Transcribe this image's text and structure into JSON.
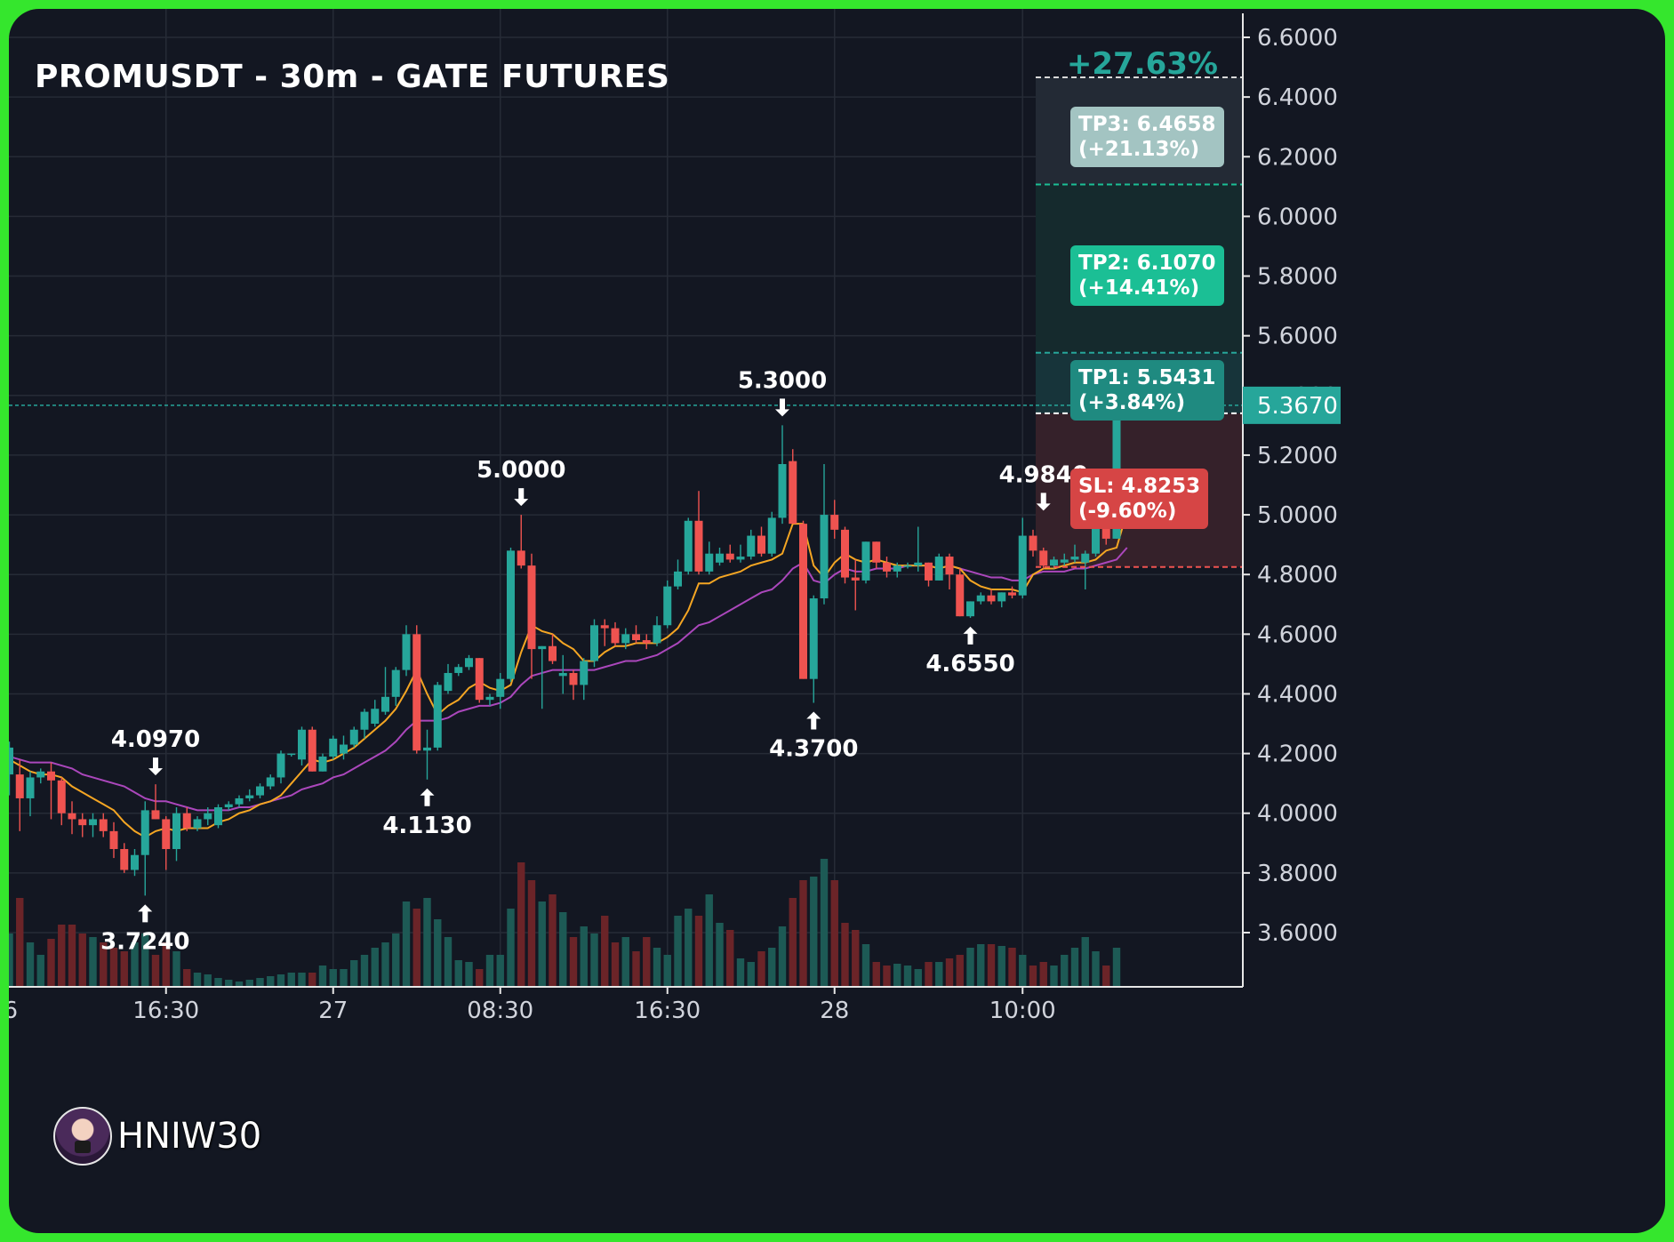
{
  "title": "PROMUSDT - 30m - GATE FUTURES",
  "watermark": "HNIW30",
  "colors": {
    "up": "#26a69a",
    "down": "#ef5350",
    "ema_fast": "#f5a623",
    "ema_slow": "#ab47bc",
    "last_price": "#26a69a",
    "profit": "#26a69a",
    "tp3": "#a3c4c2",
    "tp2": "#1bbf95",
    "tp1": "#1f8a80",
    "sl": "#d64545"
  },
  "chart_data": {
    "type": "candlestick",
    "title": "PROMUSDT - 30m - GATE FUTURES",
    "y_axis": {
      "ylim": [
        3.42,
        6.66
      ],
      "ticks": [
        "6.6000",
        "6.4000",
        "6.2000",
        "6.0000",
        "5.8000",
        "5.6000",
        "5.4000",
        "5.2000",
        "5.0000",
        "4.8000",
        "4.6000",
        "4.4000",
        "4.2000",
        "4.0000",
        "3.8000",
        "3.6000"
      ]
    },
    "x_axis": {
      "ticks": [
        {
          "label": "26",
          "index": -0.6
        },
        {
          "label": "16:30",
          "index": 15
        },
        {
          "label": "27",
          "index": 31
        },
        {
          "label": "08:30",
          "index": 47
        },
        {
          "label": "16:30",
          "index": 63
        },
        {
          "label": "28",
          "index": 79
        },
        {
          "label": "10:00",
          "index": 97
        }
      ]
    },
    "candles": [
      {
        "o": 4.13,
        "h": 4.24,
        "l": 4.06,
        "c": 4.22
      },
      {
        "o": 4.13,
        "h": 4.18,
        "l": 3.94,
        "c": 4.05
      },
      {
        "o": 4.05,
        "h": 4.14,
        "l": 3.99,
        "c": 4.12
      },
      {
        "o": 4.12,
        "h": 4.15,
        "l": 4.1,
        "c": 4.14
      },
      {
        "o": 4.14,
        "h": 4.17,
        "l": 3.98,
        "c": 4.11
      },
      {
        "o": 4.11,
        "h": 4.12,
        "l": 3.96,
        "c": 4.0
      },
      {
        "o": 4.0,
        "h": 4.04,
        "l": 3.93,
        "c": 3.98
      },
      {
        "o": 3.98,
        "h": 4.0,
        "l": 3.92,
        "c": 3.96
      },
      {
        "o": 3.96,
        "h": 4.0,
        "l": 3.92,
        "c": 3.98
      },
      {
        "o": 3.98,
        "h": 4.0,
        "l": 3.92,
        "c": 3.94
      },
      {
        "o": 3.94,
        "h": 3.97,
        "l": 3.85,
        "c": 3.88
      },
      {
        "o": 3.88,
        "h": 3.9,
        "l": 3.8,
        "c": 3.81
      },
      {
        "o": 3.81,
        "h": 3.88,
        "l": 3.79,
        "c": 3.86
      },
      {
        "o": 3.86,
        "h": 4.04,
        "l": 3.724,
        "c": 4.01
      },
      {
        "o": 4.01,
        "h": 4.097,
        "l": 3.98,
        "c": 3.98
      },
      {
        "o": 3.98,
        "h": 3.99,
        "l": 3.81,
        "c": 3.88
      },
      {
        "o": 3.88,
        "h": 4.02,
        "l": 3.84,
        "c": 4.0
      },
      {
        "o": 4.0,
        "h": 4.02,
        "l": 3.94,
        "c": 3.95
      },
      {
        "o": 3.95,
        "h": 3.99,
        "l": 3.94,
        "c": 3.98
      },
      {
        "o": 3.98,
        "h": 4.02,
        "l": 3.96,
        "c": 4.0
      },
      {
        "o": 3.96,
        "h": 4.03,
        "l": 3.95,
        "c": 4.02
      },
      {
        "o": 4.02,
        "h": 4.04,
        "l": 4.01,
        "c": 4.03
      },
      {
        "o": 4.03,
        "h": 4.06,
        "l": 4.02,
        "c": 4.05
      },
      {
        "o": 4.05,
        "h": 4.08,
        "l": 4.04,
        "c": 4.06
      },
      {
        "o": 4.06,
        "h": 4.1,
        "l": 4.05,
        "c": 4.09
      },
      {
        "o": 4.09,
        "h": 4.13,
        "l": 4.08,
        "c": 4.12
      },
      {
        "o": 4.12,
        "h": 4.21,
        "l": 4.1,
        "c": 4.2
      },
      {
        "o": 4.2,
        "h": 4.2,
        "l": 4.19,
        "c": 4.2
      },
      {
        "o": 4.18,
        "h": 4.29,
        "l": 4.16,
        "c": 4.28
      },
      {
        "o": 4.28,
        "h": 4.29,
        "l": 4.14,
        "c": 4.14
      },
      {
        "o": 4.14,
        "h": 4.2,
        "l": 4.14,
        "c": 4.19
      },
      {
        "o": 4.19,
        "h": 4.26,
        "l": 4.18,
        "c": 4.25
      },
      {
        "o": 4.2,
        "h": 4.26,
        "l": 4.18,
        "c": 4.23
      },
      {
        "o": 4.23,
        "h": 4.29,
        "l": 4.22,
        "c": 4.28
      },
      {
        "o": 4.28,
        "h": 4.35,
        "l": 4.25,
        "c": 4.34
      },
      {
        "o": 4.3,
        "h": 4.38,
        "l": 4.29,
        "c": 4.35
      },
      {
        "o": 4.34,
        "h": 4.49,
        "l": 4.33,
        "c": 4.39
      },
      {
        "o": 4.39,
        "h": 4.49,
        "l": 4.36,
        "c": 4.48
      },
      {
        "o": 4.48,
        "h": 4.63,
        "l": 4.46,
        "c": 4.6
      },
      {
        "o": 4.6,
        "h": 4.63,
        "l": 4.2,
        "c": 4.21
      },
      {
        "o": 4.21,
        "h": 4.28,
        "l": 4.113,
        "c": 4.22
      },
      {
        "o": 4.22,
        "h": 4.44,
        "l": 4.21,
        "c": 4.43
      },
      {
        "o": 4.41,
        "h": 4.5,
        "l": 4.4,
        "c": 4.47
      },
      {
        "o": 4.47,
        "h": 4.5,
        "l": 4.46,
        "c": 4.49
      },
      {
        "o": 4.49,
        "h": 4.53,
        "l": 4.48,
        "c": 4.52
      },
      {
        "o": 4.52,
        "h": 4.52,
        "l": 4.37,
        "c": 4.38
      },
      {
        "o": 4.38,
        "h": 4.4,
        "l": 4.36,
        "c": 4.39
      },
      {
        "o": 4.39,
        "h": 4.47,
        "l": 4.35,
        "c": 4.45
      },
      {
        "o": 4.45,
        "h": 4.89,
        "l": 4.44,
        "c": 4.88
      },
      {
        "o": 4.88,
        "h": 5.0,
        "l": 4.82,
        "c": 4.83
      },
      {
        "o": 4.83,
        "h": 4.87,
        "l": 4.45,
        "c": 4.55
      },
      {
        "o": 4.55,
        "h": 4.56,
        "l": 4.35,
        "c": 4.56
      },
      {
        "o": 4.56,
        "h": 4.6,
        "l": 4.5,
        "c": 4.51
      },
      {
        "o": 4.46,
        "h": 4.53,
        "l": 4.4,
        "c": 4.47
      },
      {
        "o": 4.47,
        "h": 4.48,
        "l": 4.38,
        "c": 4.43
      },
      {
        "o": 4.43,
        "h": 4.52,
        "l": 4.38,
        "c": 4.51
      },
      {
        "o": 4.51,
        "h": 4.65,
        "l": 4.49,
        "c": 4.63
      },
      {
        "o": 4.63,
        "h": 4.65,
        "l": 4.56,
        "c": 4.62
      },
      {
        "o": 4.62,
        "h": 4.64,
        "l": 4.56,
        "c": 4.57
      },
      {
        "o": 4.57,
        "h": 4.62,
        "l": 4.55,
        "c": 4.6
      },
      {
        "o": 4.6,
        "h": 4.63,
        "l": 4.57,
        "c": 4.58
      },
      {
        "o": 4.58,
        "h": 4.6,
        "l": 4.55,
        "c": 4.57
      },
      {
        "o": 4.57,
        "h": 4.66,
        "l": 4.56,
        "c": 4.63
      },
      {
        "o": 4.63,
        "h": 4.78,
        "l": 4.62,
        "c": 4.76
      },
      {
        "o": 4.76,
        "h": 4.85,
        "l": 4.75,
        "c": 4.81
      },
      {
        "o": 4.81,
        "h": 4.99,
        "l": 4.8,
        "c": 4.98
      },
      {
        "o": 4.98,
        "h": 5.08,
        "l": 4.8,
        "c": 4.81
      },
      {
        "o": 4.81,
        "h": 4.91,
        "l": 4.8,
        "c": 4.87
      },
      {
        "o": 4.84,
        "h": 4.89,
        "l": 4.83,
        "c": 4.87
      },
      {
        "o": 4.87,
        "h": 4.9,
        "l": 4.84,
        "c": 4.85
      },
      {
        "o": 4.85,
        "h": 4.9,
        "l": 4.84,
        "c": 4.86
      },
      {
        "o": 4.86,
        "h": 4.95,
        "l": 4.85,
        "c": 4.93
      },
      {
        "o": 4.93,
        "h": 4.96,
        "l": 4.86,
        "c": 4.87
      },
      {
        "o": 4.87,
        "h": 5.01,
        "l": 4.86,
        "c": 4.99
      },
      {
        "o": 4.99,
        "h": 5.3,
        "l": 4.97,
        "c": 5.17
      },
      {
        "o": 5.18,
        "h": 5.22,
        "l": 4.98,
        "c": 4.97
      },
      {
        "o": 4.97,
        "h": 4.98,
        "l": 4.45,
        "c": 4.45
      },
      {
        "o": 4.45,
        "h": 4.73,
        "l": 4.37,
        "c": 4.72
      },
      {
        "o": 4.72,
        "h": 5.17,
        "l": 4.7,
        "c": 5.0
      },
      {
        "o": 5.0,
        "h": 5.05,
        "l": 4.92,
        "c": 4.95
      },
      {
        "o": 4.95,
        "h": 4.96,
        "l": 4.77,
        "c": 4.79
      },
      {
        "o": 4.79,
        "h": 4.85,
        "l": 4.68,
        "c": 4.78
      },
      {
        "o": 4.78,
        "h": 4.91,
        "l": 4.77,
        "c": 4.91
      },
      {
        "o": 4.91,
        "h": 4.91,
        "l": 4.82,
        "c": 4.84
      },
      {
        "o": 4.84,
        "h": 4.86,
        "l": 4.79,
        "c": 4.81
      },
      {
        "o": 4.81,
        "h": 4.84,
        "l": 4.79,
        "c": 4.83
      },
      {
        "o": 4.83,
        "h": 4.84,
        "l": 4.82,
        "c": 4.83
      },
      {
        "o": 4.83,
        "h": 4.96,
        "l": 4.81,
        "c": 4.84
      },
      {
        "o": 4.84,
        "h": 4.84,
        "l": 4.76,
        "c": 4.78
      },
      {
        "o": 4.78,
        "h": 4.87,
        "l": 4.78,
        "c": 4.86
      },
      {
        "o": 4.86,
        "h": 4.87,
        "l": 4.75,
        "c": 4.8
      },
      {
        "o": 4.8,
        "h": 4.82,
        "l": 4.66,
        "c": 4.66
      },
      {
        "o": 4.66,
        "h": 4.71,
        "l": 4.655,
        "c": 4.71
      },
      {
        "o": 4.71,
        "h": 4.74,
        "l": 4.7,
        "c": 4.73
      },
      {
        "o": 4.73,
        "h": 4.75,
        "l": 4.7,
        "c": 4.71
      },
      {
        "o": 4.71,
        "h": 4.74,
        "l": 4.69,
        "c": 4.74
      },
      {
        "o": 4.74,
        "h": 4.76,
        "l": 4.72,
        "c": 4.73
      },
      {
        "o": 4.73,
        "h": 4.99,
        "l": 4.72,
        "c": 4.93
      },
      {
        "o": 4.93,
        "h": 4.95,
        "l": 4.86,
        "c": 4.88
      },
      {
        "o": 4.88,
        "h": 4.89,
        "l": 4.82,
        "c": 4.83
      },
      {
        "o": 4.83,
        "h": 4.86,
        "l": 4.82,
        "c": 4.85
      },
      {
        "o": 4.84,
        "h": 4.87,
        "l": 4.83,
        "c": 4.85
      },
      {
        "o": 4.85,
        "h": 4.9,
        "l": 4.84,
        "c": 4.86
      },
      {
        "o": 4.84,
        "h": 4.88,
        "l": 4.75,
        "c": 4.87
      },
      {
        "o": 4.87,
        "h": 5.04,
        "l": 4.86,
        "c": 4.98
      },
      {
        "o": 4.98,
        "h": 4.99,
        "l": 4.9,
        "c": 4.92
      },
      {
        "o": 4.92,
        "h": 5.43,
        "l": 4.92,
        "c": 5.367
      }
    ],
    "volume_scale_max": 100,
    "volumes": [
      30,
      50,
      25,
      18,
      27,
      35,
      35,
      30,
      28,
      25,
      22,
      20,
      25,
      30,
      18,
      25,
      20,
      10,
      8,
      7,
      5,
      4,
      3,
      4,
      5,
      6,
      7,
      8,
      8,
      8,
      12,
      10,
      10,
      15,
      18,
      22,
      25,
      30,
      48,
      44,
      50,
      38,
      28,
      15,
      14,
      10,
      18,
      18,
      44,
      70,
      60,
      48,
      52,
      42,
      28,
      34,
      30,
      40,
      25,
      28,
      20,
      28,
      22,
      18,
      40,
      44,
      40,
      52,
      36,
      32,
      16,
      14,
      20,
      22,
      34,
      50,
      60,
      62,
      72,
      60,
      36,
      32,
      24,
      14,
      12,
      13,
      12,
      10,
      14,
      14,
      16,
      18,
      22,
      24,
      24,
      23,
      22,
      18,
      12,
      14,
      12,
      18,
      22,
      28,
      20,
      12,
      22,
      26,
      26,
      42,
      58
    ],
    "ema_fast": [
      4.18,
      4.16,
      4.14,
      4.13,
      4.13,
      4.12,
      4.09,
      4.07,
      4.05,
      4.03,
      4.01,
      3.97,
      3.94,
      3.92,
      3.94,
      3.95,
      3.94,
      3.95,
      3.95,
      3.95,
      3.97,
      3.98,
      4.0,
      4.01,
      4.03,
      4.04,
      4.06,
      4.1,
      4.14,
      4.18,
      4.17,
      4.18,
      4.2,
      4.22,
      4.25,
      4.28,
      4.31,
      4.35,
      4.41,
      4.48,
      4.4,
      4.33,
      4.36,
      4.38,
      4.42,
      4.44,
      4.42,
      4.41,
      4.43,
      4.54,
      4.63,
      4.61,
      4.6,
      4.57,
      4.55,
      4.51,
      4.51,
      4.54,
      4.56,
      4.56,
      4.57,
      4.57,
      4.57,
      4.59,
      4.62,
      4.68,
      4.77,
      4.77,
      4.79,
      4.8,
      4.81,
      4.83,
      4.84,
      4.85,
      4.87,
      4.97,
      4.97,
      4.83,
      4.79,
      4.84,
      4.87,
      4.85,
      4.84,
      4.85,
      4.84,
      4.83,
      4.83,
      4.83,
      4.83,
      4.82,
      4.83,
      4.82,
      4.78,
      4.76,
      4.75,
      4.75,
      4.75,
      4.74,
      4.8,
      4.82,
      4.82,
      4.83,
      4.84,
      4.84,
      4.85,
      4.88,
      4.89,
      5.01
    ],
    "ema_slow": [
      4.19,
      4.18,
      4.17,
      4.17,
      4.17,
      4.16,
      4.15,
      4.13,
      4.12,
      4.11,
      4.1,
      4.09,
      4.07,
      4.05,
      4.04,
      4.04,
      4.03,
      4.02,
      4.01,
      4.01,
      4.01,
      4.01,
      4.02,
      4.02,
      4.03,
      4.04,
      4.05,
      4.06,
      4.08,
      4.09,
      4.1,
      4.12,
      4.13,
      4.15,
      4.17,
      4.19,
      4.21,
      4.24,
      4.28,
      4.31,
      4.31,
      4.31,
      4.32,
      4.34,
      4.35,
      4.36,
      4.36,
      4.37,
      4.39,
      4.43,
      4.46,
      4.47,
      4.48,
      4.48,
      4.48,
      4.48,
      4.48,
      4.49,
      4.5,
      4.51,
      4.51,
      4.52,
      4.53,
      4.55,
      4.57,
      4.6,
      4.63,
      4.64,
      4.66,
      4.68,
      4.7,
      4.72,
      4.74,
      4.75,
      4.78,
      4.82,
      4.84,
      4.78,
      4.77,
      4.8,
      4.82,
      4.81,
      4.81,
      4.82,
      4.82,
      4.82,
      4.83,
      4.83,
      4.83,
      4.82,
      4.83,
      4.82,
      4.81,
      4.8,
      4.79,
      4.79,
      4.78,
      4.78,
      4.8,
      4.81,
      4.81,
      4.81,
      4.82,
      4.82,
      4.83,
      4.84,
      4.85,
      4.89
    ],
    "pivot_labels": [
      {
        "index": 14,
        "price": 4.097,
        "kind": "high",
        "label": "4.0970"
      },
      {
        "index": 13,
        "price": 3.724,
        "kind": "low",
        "label": "3.7240"
      },
      {
        "index": 40,
        "price": 4.113,
        "kind": "low",
        "label": "4.1130"
      },
      {
        "index": 49,
        "price": 5.0,
        "kind": "high",
        "label": "5.0000"
      },
      {
        "index": 74,
        "price": 5.3,
        "kind": "high",
        "label": "5.3000"
      },
      {
        "index": 77,
        "price": 4.37,
        "kind": "low",
        "label": "4.3700"
      },
      {
        "index": 92,
        "price": 4.655,
        "kind": "low",
        "label": "4.6550"
      },
      {
        "index": 99,
        "price": 4.984,
        "kind": "high",
        "label": "4.9840"
      }
    ],
    "last_price": {
      "value": 5.367,
      "label": "5.3670"
    },
    "position": {
      "entry": 5.3403,
      "profit_percent_label": "+27.63%",
      "max_target": 6.4658,
      "levels": [
        {
          "name": "TP3",
          "price": 6.4658,
          "line1": "TP3: 6.4658",
          "line2": "(+21.13%)"
        },
        {
          "name": "TP2",
          "price": 6.107,
          "line1": "TP2: 6.1070",
          "line2": "(+14.41%)"
        },
        {
          "name": "TP1",
          "price": 5.5431,
          "line1": "TP1: 5.5431",
          "line2": "(+3.84%)"
        },
        {
          "name": "SL",
          "price": 4.8253,
          "line1": "SL: 4.8253",
          "line2": "(-9.60%)"
        }
      ]
    },
    "grid": true
  }
}
